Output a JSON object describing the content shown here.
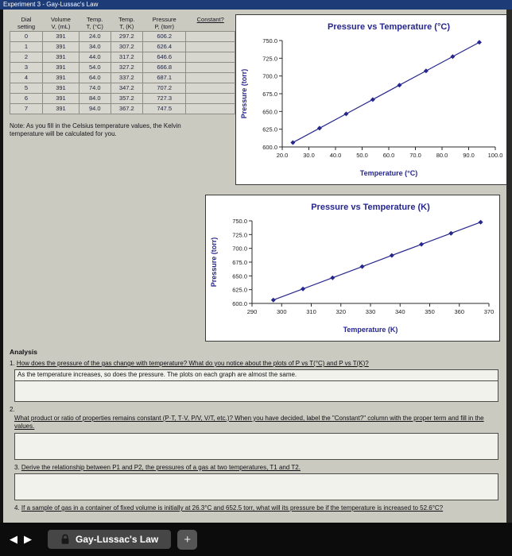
{
  "window": {
    "title": "Experiment 3 - Gay-Lussac's Law"
  },
  "table": {
    "headers": [
      {
        "line1": "Dial",
        "line2": "setting"
      },
      {
        "line1": "Volume",
        "line2": "V, (mL)"
      },
      {
        "line1": "Temp.",
        "line2": "T, (°C)"
      },
      {
        "line1": "Temp.",
        "line2": "T, (K)"
      },
      {
        "line1": "Pressure",
        "line2": "P, (torr)"
      },
      {
        "line1": "Constant?",
        "line2": ""
      }
    ],
    "rows": [
      [
        "0",
        "391",
        "24.0",
        "297.2",
        "606.2",
        ""
      ],
      [
        "1",
        "391",
        "34.0",
        "307.2",
        "626.4",
        ""
      ],
      [
        "2",
        "391",
        "44.0",
        "317.2",
        "646.6",
        ""
      ],
      [
        "3",
        "391",
        "54.0",
        "327.2",
        "666.8",
        ""
      ],
      [
        "4",
        "391",
        "64.0",
        "337.2",
        "687.1",
        ""
      ],
      [
        "5",
        "391",
        "74.0",
        "347.2",
        "707.2",
        ""
      ],
      [
        "6",
        "391",
        "84.0",
        "357.2",
        "727.3",
        ""
      ],
      [
        "7",
        "391",
        "94.0",
        "367.2",
        "747.5",
        ""
      ]
    ]
  },
  "note": "Note: As you fill in the Celsius temperature values, the Kelvin temperature will be calculated for you.",
  "chart_data": [
    {
      "type": "scatter",
      "title": "Pressure vs Temperature (°C)",
      "xlabel": "Temperature (°C)",
      "ylabel": "Pressure (torr)",
      "x": [
        24.0,
        34.0,
        44.0,
        54.0,
        64.0,
        74.0,
        84.0,
        94.0
      ],
      "y": [
        606.2,
        626.4,
        646.6,
        666.8,
        687.1,
        707.2,
        727.3,
        747.5
      ],
      "xlim": [
        20,
        100
      ],
      "ylim": [
        600,
        750
      ],
      "xticks": [
        "20.0",
        "30.0",
        "40.0",
        "50.0",
        "60.0",
        "70.0",
        "80.0",
        "90.0",
        "100.0"
      ],
      "yticks": [
        "600.0",
        "625.0",
        "650.0",
        "675.0",
        "700.0",
        "725.0",
        "750.0"
      ],
      "color": "#26268c",
      "grid": false,
      "legend": "none"
    },
    {
      "type": "scatter",
      "title": "Pressure vs Temperature (K)",
      "xlabel": "Temperature (K)",
      "ylabel": "Pressure (torr)",
      "x": [
        297.2,
        307.2,
        317.2,
        327.2,
        337.2,
        347.2,
        357.2,
        367.2
      ],
      "y": [
        606.2,
        626.4,
        646.6,
        666.8,
        687.1,
        707.2,
        727.3,
        747.5
      ],
      "xlim": [
        290,
        370
      ],
      "ylim": [
        600,
        750
      ],
      "xticks": [
        "290",
        "300",
        "310",
        "320",
        "330",
        "340",
        "350",
        "360",
        "370"
      ],
      "yticks": [
        "600.0",
        "625.0",
        "650.0",
        "675.0",
        "700.0",
        "725.0",
        "750.0"
      ],
      "color": "#26268c",
      "grid": false,
      "legend": "none"
    }
  ],
  "analysis": {
    "heading": "Analysis",
    "questions": [
      {
        "number": "1.",
        "number_own_line": false,
        "text": "How does the pressure of the gas change with temperature? What do you notice about the plots of P vs T(°C) and P vs T(K)?",
        "answer": "As the temperature increases, so does the pressure. The plots on each graph are almost the same."
      },
      {
        "number": "2.",
        "number_own_line": true,
        "text": "What product or ratio of properties remains constant (P·T, T·V, P/V, V/T, etc.)? When you have decided, label the \"Constant?\" column with the proper term and fill in the values.",
        "answer": ""
      },
      {
        "number": "3.",
        "number_own_line": false,
        "text": "Derive the relationship between P1 and P2, the pressures of a gas at two temperatures, T1 and T2.",
        "answer": ""
      },
      {
        "number": "4.",
        "number_own_line": false,
        "text": "If a sample of gas in a container of fixed volume is initially at 26.3°C and 652.5 torr, what will its pressure be if the temperature is increased to 52.6°C?",
        "answer": ""
      }
    ]
  },
  "footer": {
    "prev": "◀",
    "next": "▶",
    "tab_label": "Gay-Lussac's Law",
    "add": "+"
  },
  "colors": {
    "titlebar_navy": "#1d3b76",
    "chart_navy": "#26268c",
    "page_gray": "#cbcac1"
  }
}
